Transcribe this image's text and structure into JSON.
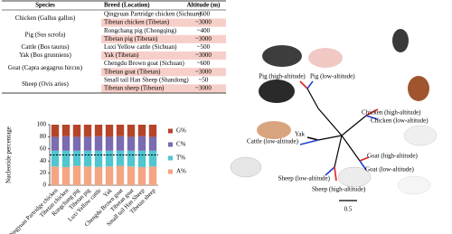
{
  "table": {
    "header": [
      "Species",
      "Breed (Location)",
      "Altitude (m)"
    ],
    "groups": [
      {
        "species": "Chicken (Gallus gallus)",
        "breeds": [
          {
            "breed": "Qingyuan Partridge chicken (Sichuan)",
            "altitude": "~600"
          },
          {
            "breed": "Tibetan chicken (Tibetan)",
            "altitude": "~3000"
          }
        ]
      },
      {
        "species": "Pig (Sus scrofa)",
        "breeds": [
          {
            "breed": "Rongchang pig (Chongqing)",
            "altitude": "~400"
          },
          {
            "breed": "Tibetan pig (Tibetan)",
            "altitude": "~3000"
          }
        ]
      },
      {
        "species": "Cattle (Bos taurus)",
        "breeds": [
          {
            "breed": "Luxi Yellow cattle (Sichuan)",
            "altitude": "~500"
          }
        ]
      },
      {
        "species": "Yak (Bos grunniens)",
        "breeds": [
          {
            "breed": "Yak (Tibetan)",
            "altitude": "~3000"
          }
        ]
      },
      {
        "species": "Goat (Capra aegagrus hircus)",
        "breeds": [
          {
            "breed": "Chengdu Brown goat (Sichuan)",
            "altitude": "~600"
          },
          {
            "breed": "Tibetan goat (Tibetan)",
            "altitude": "~3000"
          }
        ]
      },
      {
        "species": "Sheep (Ovis aries)",
        "breeds": [
          {
            "breed": "Small tail Han Sheep (Shandong)",
            "altitude": "~50"
          },
          {
            "breed": "Tibetan sheep (Tibetan)",
            "altitude": "~3000"
          }
        ]
      }
    ]
  },
  "chart_data": {
    "type": "stacked-bar",
    "y_label": "Nucleotide percentage",
    "categories": [
      "Qingyuan Partridge chicken",
      "Tibetan chicken",
      "Rongchang pig",
      "Tibetan pig",
      "Luxi Yellow cattle",
      "Yak",
      "Chengdu Brown goat",
      "Tibetan goat",
      "Small tail Han Sheep",
      "Tibetan sheep"
    ],
    "series": [
      {
        "name": "A%",
        "color": "#f4a582",
        "values": [
          31,
          30,
          32,
          31,
          30,
          31,
          32,
          31,
          30,
          31
        ]
      },
      {
        "name": "T%",
        "color": "#4fc6d0",
        "values": [
          26,
          27,
          25,
          26,
          27,
          26,
          25,
          26,
          27,
          26
        ]
      },
      {
        "name": "C%",
        "color": "#7b6bb0",
        "values": [
          23,
          24,
          23,
          23,
          24,
          23,
          24,
          23,
          24,
          23
        ]
      },
      {
        "name": "G%",
        "color": "#b5442a",
        "values": [
          20,
          19,
          20,
          20,
          19,
          20,
          19,
          20,
          19,
          20
        ]
      }
    ],
    "reference_line": 50,
    "ylim": [
      0,
      100
    ],
    "yticks": [
      0,
      20,
      40,
      60,
      80,
      100
    ]
  },
  "tree": {
    "leaves": [
      "Pig (high-altitude)",
      "Pig (low-altitude)",
      "Chicken (high-altitude)",
      "Chicken (low-altitude)",
      "Yak",
      "Cattle (low-altitude)",
      "Goat (high-altitude)",
      "Goat (low-altitude)",
      "Sheep (low-altitude)",
      "Sheep (high-altitude)"
    ],
    "scale": "0.5"
  }
}
